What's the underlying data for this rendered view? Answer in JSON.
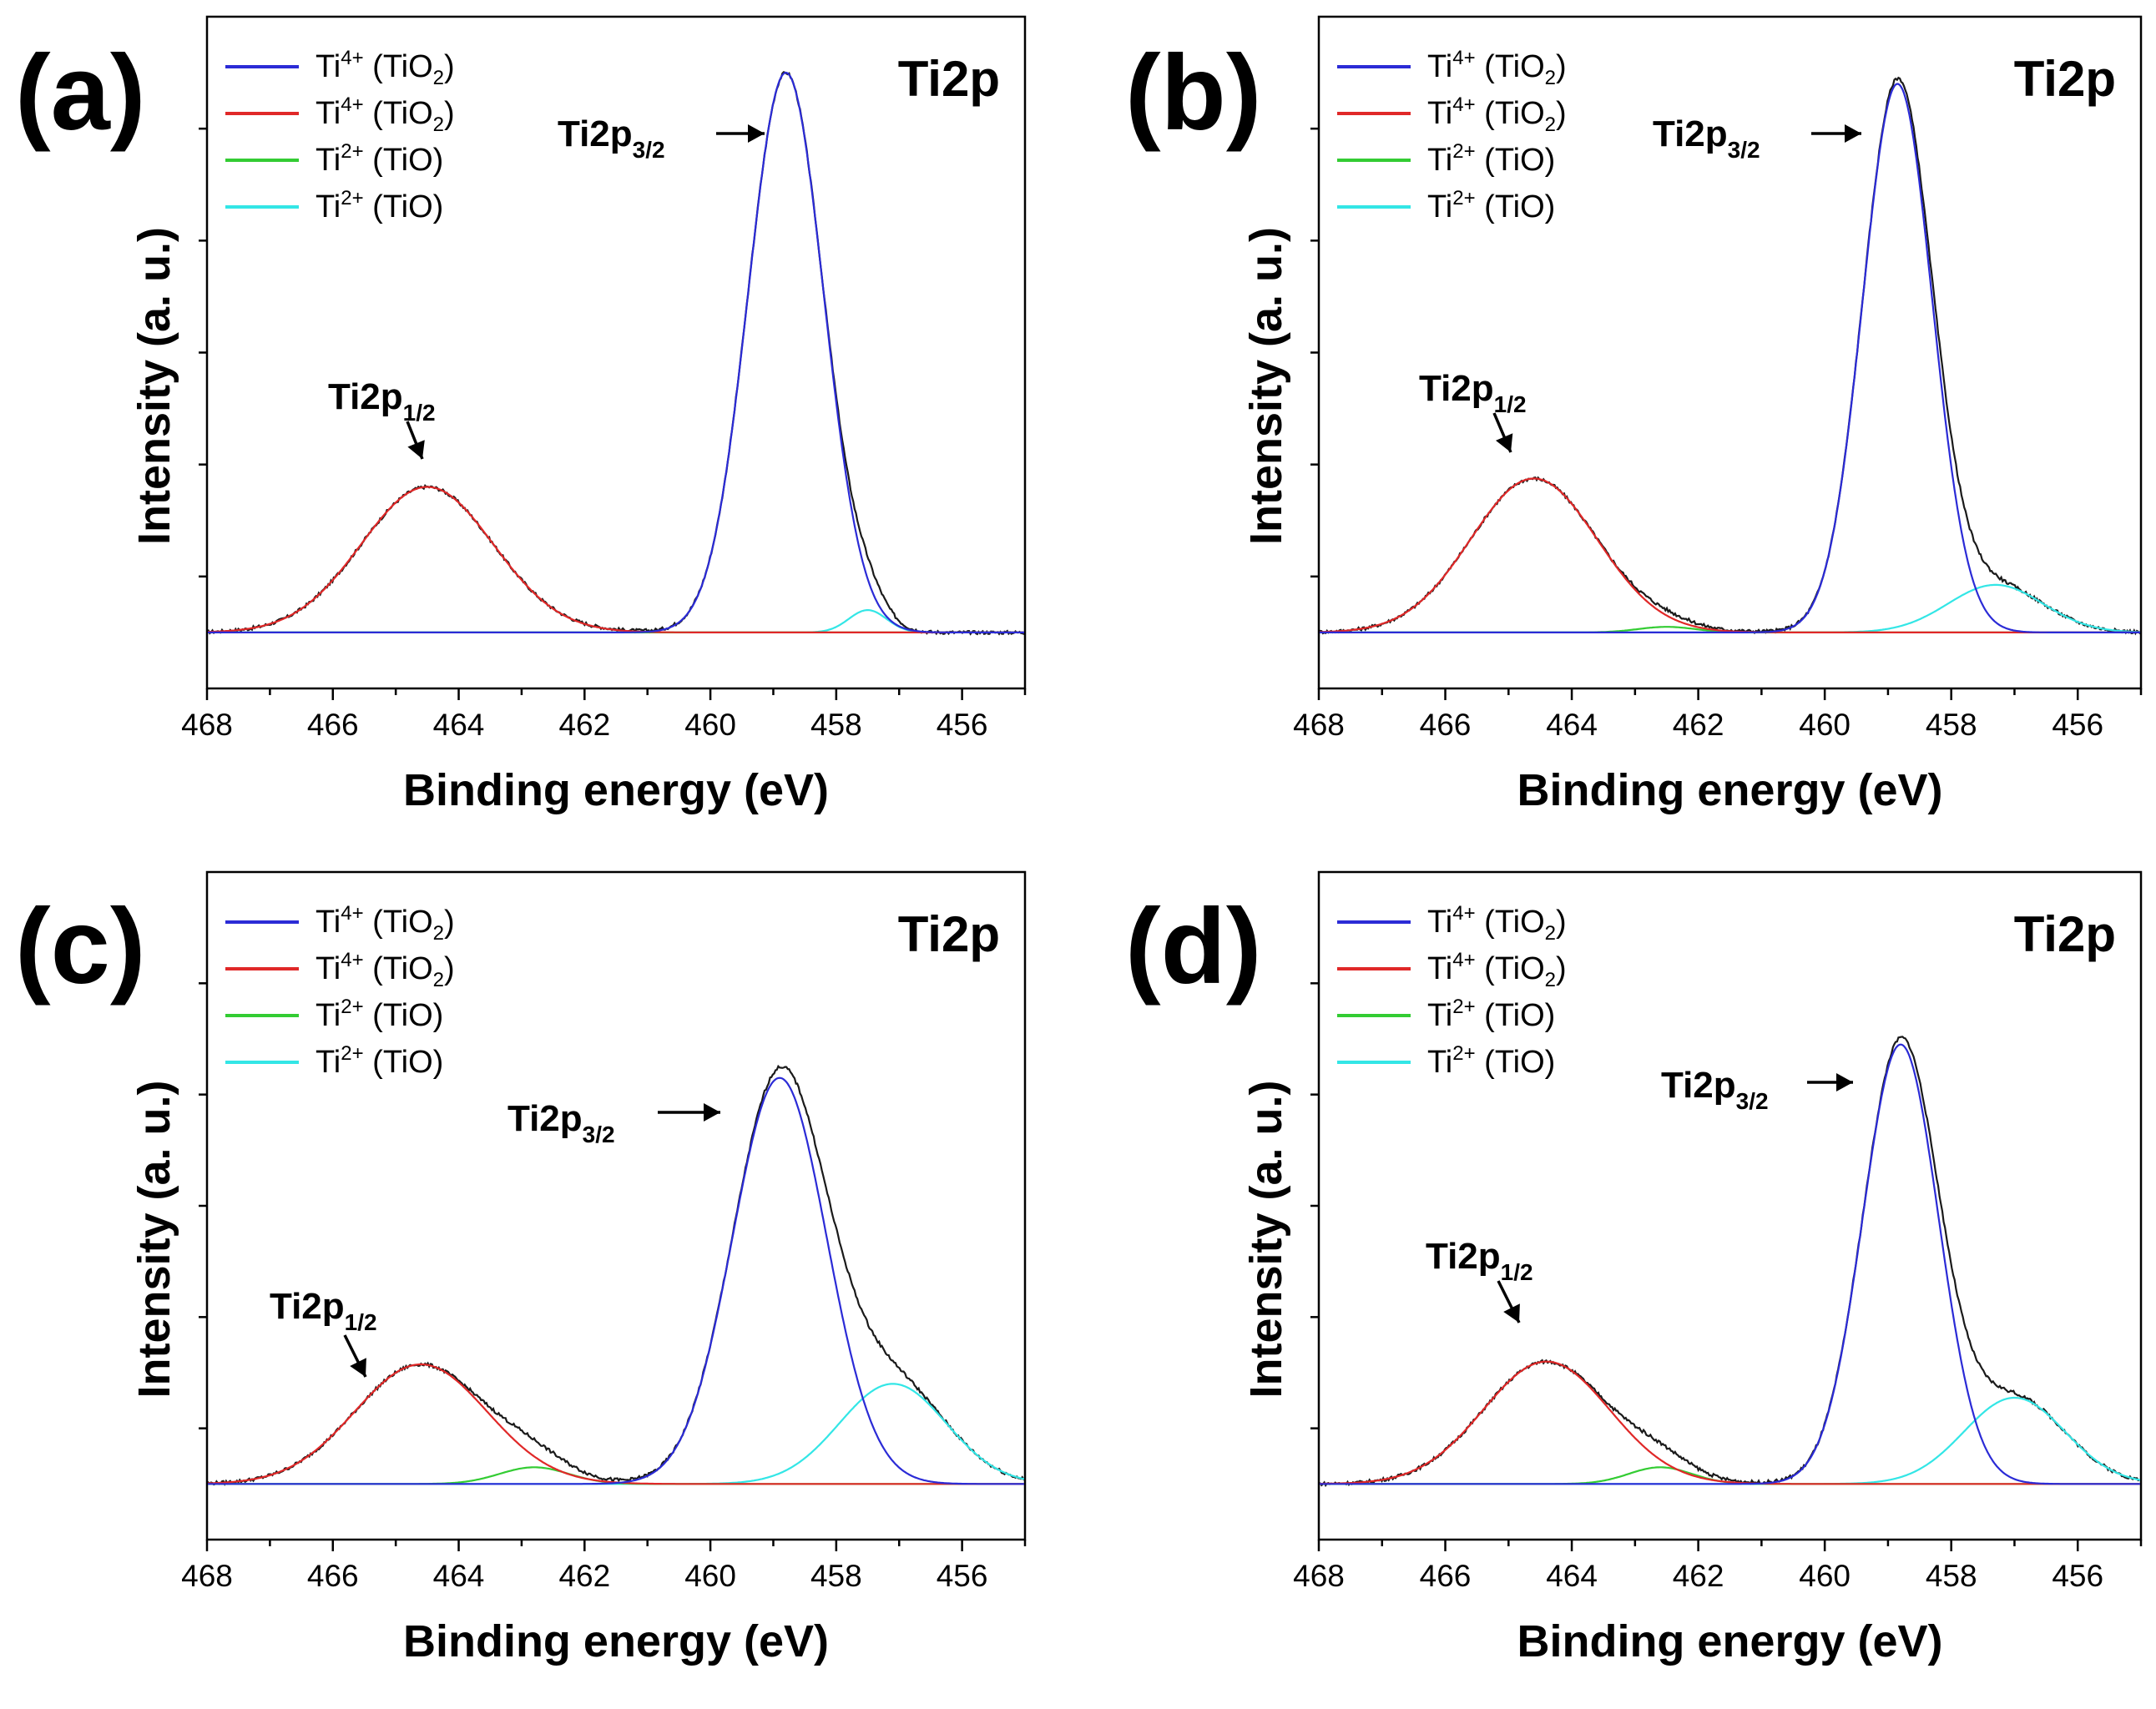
{
  "chart_data": [
    {
      "type": "line",
      "panel_label": "(a)",
      "element_label": "Ti2p",
      "xlabel": "Binding energy (eV)",
      "ylabel": "Intensity (a. u.)",
      "xlim": [
        468,
        455
      ],
      "ylim": [
        -0.1,
        1.1
      ],
      "xticks": [
        "468",
        "466",
        "464",
        "462",
        "460",
        "458",
        "456"
      ],
      "legend": [
        {
          "base": "Ti",
          "sup": "4+",
          "pre": " (TiO",
          "sub": "2",
          "post": ")",
          "color": "#2b2bd6"
        },
        {
          "base": "Ti",
          "sup": "4+",
          "pre": " (TiO",
          "sub": "2",
          "post": ")",
          "color": "#e02828"
        },
        {
          "base": "Ti",
          "sup": "2+",
          "pre": " (TiO)",
          "sub": "",
          "post": "",
          "color": "#33cc33"
        },
        {
          "base": "Ti",
          "sup": "2+",
          "pre": " (TiO)",
          "sub": "",
          "post": "",
          "color": "#33e6e6"
        }
      ],
      "annotations": [
        {
          "base": "Ti2p",
          "sub": "3/2",
          "x": 458.8,
          "y": 0.91
        },
        {
          "base": "Ti2p",
          "sub": "1/2",
          "x": 464.5,
          "y": 0.3
        }
      ],
      "series": [
        {
          "name": "Ti4+ (TiO2) 2p3/2",
          "color": "#2b2bd6",
          "center": 458.8,
          "height": 1.0,
          "sigma": 0.6
        },
        {
          "name": "Ti4+ (TiO2) 2p1/2",
          "color": "#e02828",
          "center": 464.5,
          "height": 0.26,
          "sigma": 1.05
        },
        {
          "name": "Ti2+ (TiO) 2p1/2",
          "color": "#33cc33",
          "center": 462.6,
          "height": 0.0,
          "sigma": 0.5
        },
        {
          "name": "Ti2+ (TiO) 2p3/2",
          "color": "#33e6e6",
          "center": 457.5,
          "height": 0.04,
          "sigma": 0.3
        }
      ]
    },
    {
      "type": "line",
      "panel_label": "(b)",
      "element_label": "Ti2p",
      "xlabel": "Binding energy (eV)",
      "ylabel": "Intensity (a. u.)",
      "xlim": [
        468,
        455
      ],
      "ylim": [
        -0.1,
        1.1
      ],
      "xticks": [
        "468",
        "466",
        "464",
        "462",
        "460",
        "458",
        "456"
      ],
      "legend": [
        {
          "base": "Ti",
          "sup": "4+",
          "pre": " (TiO",
          "sub": "2",
          "post": ")",
          "color": "#2b2bd6"
        },
        {
          "base": "Ti",
          "sup": "4+",
          "pre": " (TiO",
          "sub": "2",
          "post": ")",
          "color": "#e02828"
        },
        {
          "base": "Ti",
          "sup": "2+",
          "pre": " (TiO)",
          "sub": "",
          "post": "",
          "color": "#33cc33"
        },
        {
          "base": "Ti",
          "sup": "2+",
          "pre": " (TiO)",
          "sub": "",
          "post": "",
          "color": "#33e6e6"
        }
      ],
      "annotations": [
        {
          "base": "Ti2p",
          "sub": "3/2",
          "x": 458.8,
          "y": 0.91
        },
        {
          "base": "Ti2p",
          "sub": "1/2",
          "x": 464.5,
          "y": 0.3
        }
      ],
      "series": [
        {
          "name": "Ti4+ (TiO2) 2p3/2",
          "color": "#2b2bd6",
          "center": 458.85,
          "height": 0.98,
          "sigma": 0.55
        },
        {
          "name": "Ti4+ (TiO2) 2p1/2",
          "color": "#e02828",
          "center": 464.6,
          "height": 0.275,
          "sigma": 1.0
        },
        {
          "name": "Ti2+ (TiO) 2p1/2",
          "color": "#33cc33",
          "center": 462.5,
          "height": 0.01,
          "sigma": 0.45
        },
        {
          "name": "Ti2+ (TiO) 2p3/2",
          "color": "#33e6e6",
          "center": 457.3,
          "height": 0.085,
          "sigma": 0.75
        }
      ]
    },
    {
      "type": "line",
      "panel_label": "(c)",
      "element_label": "Ti2p",
      "xlabel": "Binding energy (eV)",
      "ylabel": "Intensity (a. u.)",
      "xlim": [
        468,
        455
      ],
      "ylim": [
        -0.1,
        1.1
      ],
      "xticks": [
        "468",
        "466",
        "464",
        "462",
        "460",
        "458",
        "456"
      ],
      "legend": [
        {
          "base": "Ti",
          "sup": "4+",
          "pre": " (TiO",
          "sub": "2",
          "post": ")",
          "color": "#2b2bd6"
        },
        {
          "base": "Ti",
          "sup": "4+",
          "pre": " (TiO",
          "sub": "2",
          "post": ")",
          "color": "#e02828"
        },
        {
          "base": "Ti",
          "sup": "2+",
          "pre": " (TiO)",
          "sub": "",
          "post": "",
          "color": "#33cc33"
        },
        {
          "base": "Ti",
          "sup": "2+",
          "pre": " (TiO)",
          "sub": "",
          "post": "",
          "color": "#33e6e6"
        }
      ],
      "annotations": [
        {
          "base": "Ti2p",
          "sub": "3/2",
          "x": 458.9,
          "y": 0.76
        },
        {
          "base": "Ti2p",
          "sub": "1/2",
          "x": 464.6,
          "y": 0.26
        }
      ],
      "series": [
        {
          "name": "Ti4+ (TiO2) 2p3/2",
          "color": "#2b2bd6",
          "center": 458.9,
          "height": 0.73,
          "sigma": 0.75
        },
        {
          "name": "Ti4+ (TiO2) 2p1/2",
          "color": "#e02828",
          "center": 464.6,
          "height": 0.215,
          "sigma": 1.05
        },
        {
          "name": "Ti2+ (TiO) 2p1/2",
          "color": "#33cc33",
          "center": 462.8,
          "height": 0.03,
          "sigma": 0.55
        },
        {
          "name": "Ti2+ (TiO) 2p3/2",
          "color": "#33e6e6",
          "center": 457.1,
          "height": 0.18,
          "sigma": 0.85
        }
      ]
    },
    {
      "type": "line",
      "panel_label": "(d)",
      "element_label": "Ti2p",
      "xlabel": "Binding energy (eV)",
      "ylabel": "Intensity (a. u.)",
      "xlim": [
        468,
        455
      ],
      "ylim": [
        -0.1,
        1.1
      ],
      "xticks": [
        "468",
        "466",
        "464",
        "462",
        "460",
        "458",
        "456"
      ],
      "legend": [
        {
          "base": "Ti",
          "sup": "4+",
          "pre": " (TiO",
          "sub": "2",
          "post": ")",
          "color": "#2b2bd6"
        },
        {
          "base": "Ti",
          "sup": "4+",
          "pre": " (TiO",
          "sub": "2",
          "post": ")",
          "color": "#e02828"
        },
        {
          "base": "Ti",
          "sup": "2+",
          "pre": " (TiO)",
          "sub": "",
          "post": "",
          "color": "#33cc33"
        },
        {
          "base": "Ti",
          "sup": "2+",
          "pre": " (TiO)",
          "sub": "",
          "post": "",
          "color": "#33e6e6"
        }
      ],
      "annotations": [
        {
          "base": "Ti2p",
          "sub": "3/2",
          "x": 458.8,
          "y": 0.79
        },
        {
          "base": "Ti2p",
          "sub": "1/2",
          "x": 464.5,
          "y": 0.28
        }
      ],
      "series": [
        {
          "name": "Ti4+ (TiO2) 2p3/2",
          "color": "#2b2bd6",
          "center": 458.8,
          "height": 0.79,
          "sigma": 0.6
        },
        {
          "name": "Ti4+ (TiO2) 2p1/2",
          "color": "#e02828",
          "center": 464.4,
          "height": 0.22,
          "sigma": 1.0
        },
        {
          "name": "Ti2+ (TiO) 2p1/2",
          "color": "#33cc33",
          "center": 462.6,
          "height": 0.03,
          "sigma": 0.5
        },
        {
          "name": "Ti2+ (TiO) 2p3/2",
          "color": "#33e6e6",
          "center": 457.0,
          "height": 0.155,
          "sigma": 0.8
        }
      ]
    }
  ]
}
